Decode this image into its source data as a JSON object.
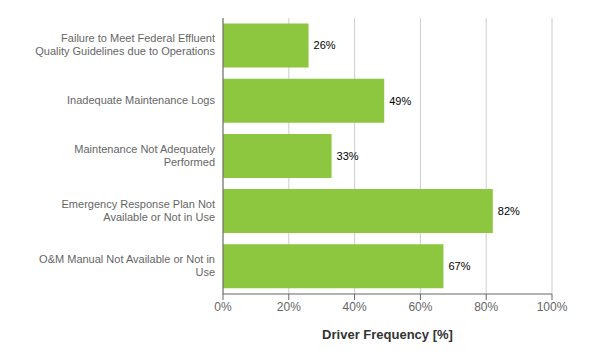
{
  "chart_data": {
    "type": "bar",
    "orientation": "horizontal",
    "categories": [
      "O&M Manual  Not Available or Not in\nUse",
      "Emergency Response Plan Not\nAvailable or Not in Use",
      "Maintenance Not Adequately\nPerformed",
      "Inadequate Maintenance Logs",
      "Failure to Meet Federal Effluent\nQuality Guidelines due to Operations"
    ],
    "values": [
      67,
      82,
      33,
      49,
      26
    ],
    "value_labels": [
      "67%",
      "82%",
      "33%",
      "49%",
      "26%"
    ],
    "data_labels": true,
    "color": "#8DC63F",
    "xlabel": "Driver Frequency [%]",
    "xlim": [
      0,
      100
    ],
    "xticks": [
      {
        "value": 0,
        "label": "0%"
      },
      {
        "value": 20,
        "label": "20%"
      },
      {
        "value": 40,
        "label": "40%"
      },
      {
        "value": 60,
        "label": "60%"
      },
      {
        "value": 80,
        "label": "80%"
      },
      {
        "value": 100,
        "label": "100%"
      }
    ],
    "grid": true
  }
}
